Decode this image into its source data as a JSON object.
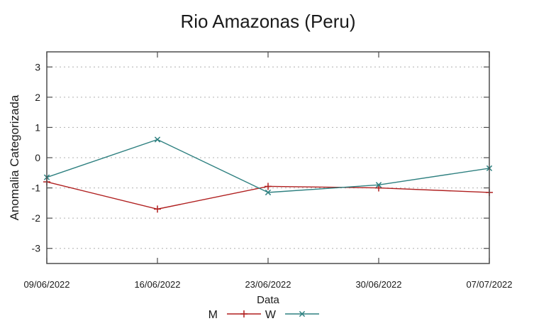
{
  "chart_data": {
    "type": "line",
    "title": "Rio Amazonas (Peru)",
    "xlabel": "Data",
    "ylabel": "Anomalia Categorizada",
    "categories": [
      "09/06/2022",
      "16/06/2022",
      "23/06/2022",
      "30/06/2022",
      "07/07/2022"
    ],
    "series": [
      {
        "name": "M",
        "marker": "plus",
        "color": "#b01f1f",
        "values": [
          -0.8,
          -1.7,
          -0.95,
          -1.0,
          -1.15
        ]
      },
      {
        "name": "W",
        "marker": "cross",
        "color": "#2e8080",
        "values": [
          -0.65,
          0.6,
          -1.15,
          -0.9,
          -0.35
        ]
      }
    ],
    "ylim": [
      -3.5,
      3.5
    ],
    "yticks": [
      -3,
      -2,
      -1,
      0,
      1,
      2,
      3
    ],
    "grid": "horizontal-dotted",
    "legend_position": "bottom-center"
  },
  "colors": {
    "text": "#1a1a1a",
    "border": "#4d4d4d",
    "grid": "#b0b0b0",
    "background": "#ffffff",
    "series_m": "#b01f1f",
    "series_w": "#2e8080"
  }
}
